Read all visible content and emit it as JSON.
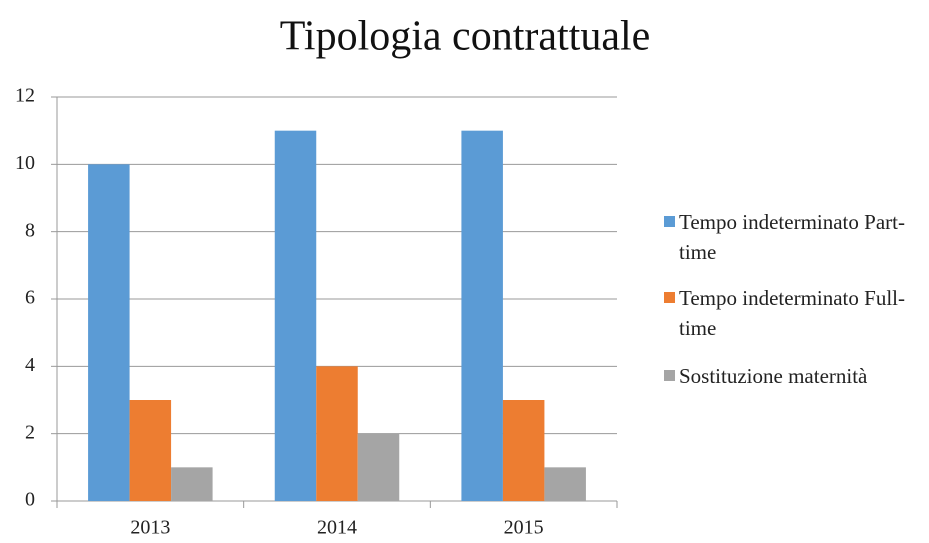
{
  "chart_data": {
    "type": "bar",
    "title": "Tipologia contrattuale",
    "categories": [
      "2013",
      "2014",
      "2015"
    ],
    "series": [
      {
        "name": "Tempo indeterminato Part-time",
        "color": "#5b9bd5",
        "values": [
          10,
          11,
          11
        ]
      },
      {
        "name": "Tempo indeterminato Full-time",
        "color": "#ed7d31",
        "values": [
          3,
          4,
          3
        ]
      },
      {
        "name": "Sostituzione maternità",
        "color": "#a5a5a5",
        "values": [
          1,
          2,
          1
        ]
      }
    ],
    "ylim": [
      0,
      12
    ],
    "yticks": [
      0,
      2,
      4,
      6,
      8,
      10,
      12
    ],
    "grid": true,
    "legend": "right"
  }
}
